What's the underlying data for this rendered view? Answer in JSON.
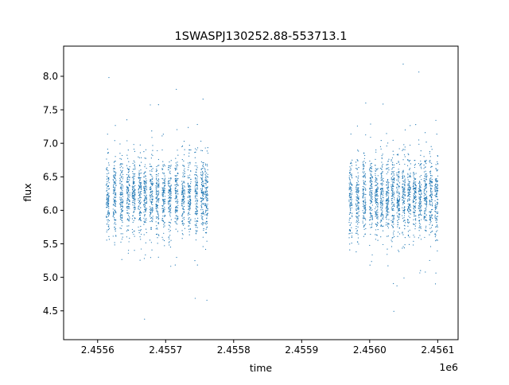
{
  "chart_data": {
    "type": "scatter",
    "title": "1SWASPJ130252.88-553713.1",
    "xlabel": "time",
    "ylabel": "flux",
    "x_offset_label": "1e6",
    "xlim": [
      2.45555,
      2.45613
    ],
    "ylim": [
      4.07,
      8.45
    ],
    "x_ticks": [
      2.4556,
      2.4557,
      2.4558,
      2.4559,
      2.456,
      2.4561
    ],
    "x_tick_labels": [
      "2.4556",
      "2.4557",
      "2.4558",
      "2.4559",
      "2.4560",
      "2.4561"
    ],
    "y_ticks": [
      4.5,
      5.0,
      5.5,
      6.0,
      6.5,
      7.0,
      7.5,
      8.0
    ],
    "y_tick_labels": [
      "4.5",
      "5.0",
      "5.5",
      "6.0",
      "6.5",
      "7.0",
      "7.5",
      "8.0"
    ],
    "grid": false,
    "marker_color": "#1f77b4",
    "series": [
      {
        "observing_nights_x": [
          2.455615,
          2.455625,
          2.455635,
          2.455645,
          2.455653,
          2.455662,
          2.45567,
          2.455679,
          2.455688,
          2.455697,
          2.455706,
          2.455716,
          2.455726,
          2.455735,
          2.455745,
          2.455754,
          2.45576,
          2.455972,
          2.455982,
          2.455992,
          2.456002,
          2.45601,
          2.456018,
          2.456026,
          2.456034,
          2.456042,
          2.45605,
          2.456058,
          2.456066,
          2.456074,
          2.456082,
          2.45609,
          2.456098
        ],
        "flux_median": 6.2,
        "flux_scatter": 0.28,
        "flux_range": [
          4.25,
          8.25
        ]
      }
    ]
  }
}
